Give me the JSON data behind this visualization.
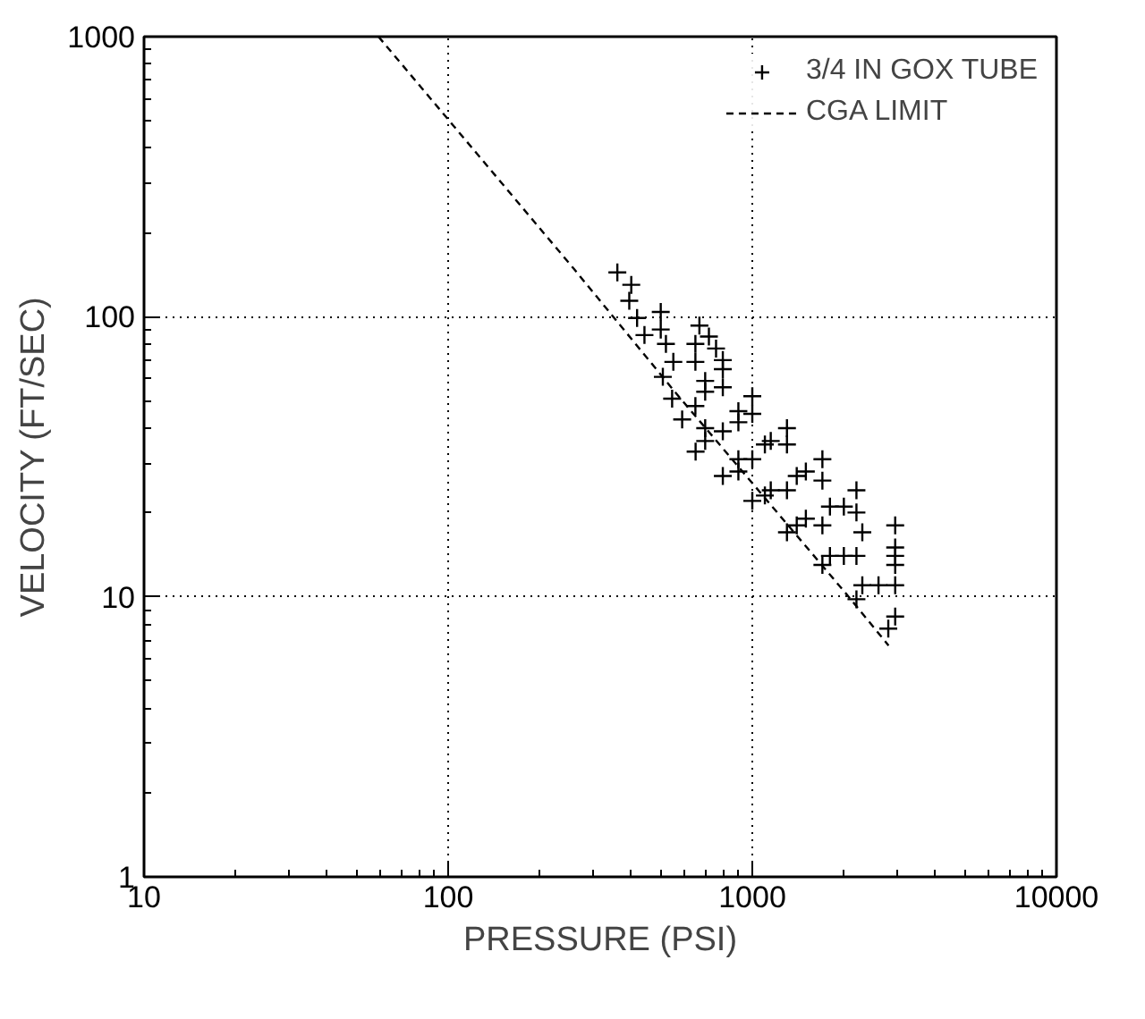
{
  "chart_data": {
    "type": "scatter",
    "xlabel": "PRESSURE (PSI)",
    "ylabel": "VELOCITY (FT/SEC)",
    "log": "xy",
    "xlim": [
      10,
      10000
    ],
    "ylim": [
      1,
      1000
    ],
    "xticks": [
      10,
      100,
      1000,
      10000
    ],
    "yticks": [
      1,
      10,
      100,
      1000
    ],
    "grid": true,
    "legend": "top right",
    "series": [
      {
        "name": "3/4 IN GOX TUBE",
        "marker": "cross",
        "color": "#000000",
        "x": [
          418,
          520,
          700,
          900,
          1150,
          1500,
          2000,
          2950,
          545,
          700,
          900,
          1150,
          1500,
          2000,
          2600,
          360,
          400,
          500,
          650,
          800,
          1000,
          1300,
          1700,
          2200,
          2950,
          394,
          500,
          650,
          800,
          1000,
          1300,
          1700,
          2200,
          2950,
          442,
          550,
          700,
          900,
          1100,
          1400,
          1800,
          2300,
          2950,
          508,
          650,
          800,
          1000,
          1300,
          1700,
          2200,
          2950,
          588,
          700,
          900,
          1100,
          1400,
          1800,
          2300,
          2950,
          651,
          800,
          1000,
          1300,
          1700,
          2200,
          2800,
          670,
          720,
          760,
          800
        ],
        "values": [
          99,
          80,
          59,
          46,
          36,
          28,
          21,
          14,
          51,
          40,
          31,
          24,
          19,
          14,
          11,
          144,
          130,
          104,
          80,
          65,
          52,
          40,
          31,
          24,
          18,
          114,
          90,
          69,
          56,
          45,
          35,
          26,
          20,
          15,
          86,
          69,
          54,
          42,
          35,
          27,
          21,
          17,
          13,
          61,
          48,
          39,
          31,
          24,
          18,
          14,
          11,
          43,
          36,
          28,
          23,
          18,
          14,
          11,
          8.5,
          33,
          27,
          22,
          17,
          13,
          9.8,
          7.7,
          93,
          85,
          77,
          70
        ]
      },
      {
        "name": "CGA LIMIT",
        "type": "line",
        "line_style": "dashed",
        "color": "#000000",
        "x": [
          59,
          258,
          564,
          2075,
          2806
        ],
        "values": [
          1000,
          149,
          53,
          10,
          6.7
        ]
      }
    ]
  }
}
